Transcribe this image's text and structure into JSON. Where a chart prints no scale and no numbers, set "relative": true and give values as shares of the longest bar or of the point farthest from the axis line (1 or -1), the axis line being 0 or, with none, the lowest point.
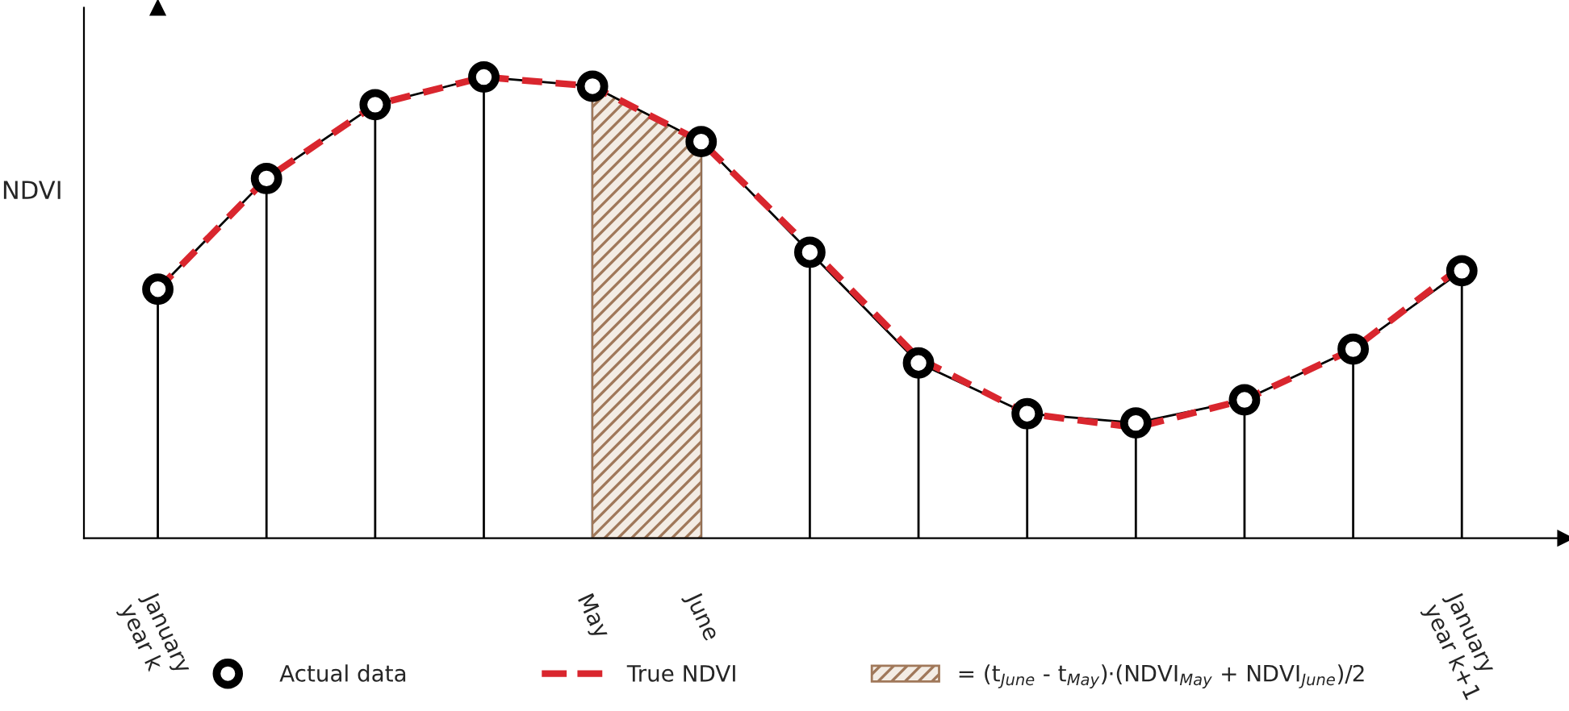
{
  "chart_data": {
    "type": "line",
    "relative": true,
    "ylabel": "NDVI",
    "categories": [
      "January\nyear k",
      null,
      null,
      null,
      "May",
      "June",
      null,
      null,
      null,
      null,
      null,
      null,
      "January\nyear k+1"
    ],
    "series": [
      {
        "name": "Actual data",
        "type": "lollipop",
        "color": "#000000",
        "marker": "circle",
        "values": [
          0.54,
          0.78,
          0.94,
          1.0,
          0.98,
          0.86,
          0.62,
          0.38,
          0.27,
          0.25,
          0.3,
          0.41,
          0.58
        ]
      },
      {
        "color": "#000000",
        "values": [
          0.54,
          0.78,
          0.94,
          1.0,
          0.98,
          0.86,
          0.62,
          0.38,
          0.27,
          0.25,
          0.3,
          0.41,
          0.58
        ]
      },
      {
        "name": "True NDVI",
        "type": "line",
        "line_style": "dashed",
        "color": "#d9262e",
        "values": [
          0.54,
          0.78,
          0.94,
          1.0,
          0.98,
          0.86,
          0.63,
          0.39,
          0.27,
          0.24,
          0.3,
          0.41,
          0.59
        ]
      }
    ],
    "bands": [
      {
        "axis": "x",
        "from": "May",
        "to": "June",
        "color": "#a0785a",
        "label": "= (t$_{June}$ - t$_{May}$)·(NDVI$_{May}$ + NDVI$_{June}$)/2"
      }
    ],
    "legend": "bottom",
    "grid": false
  }
}
